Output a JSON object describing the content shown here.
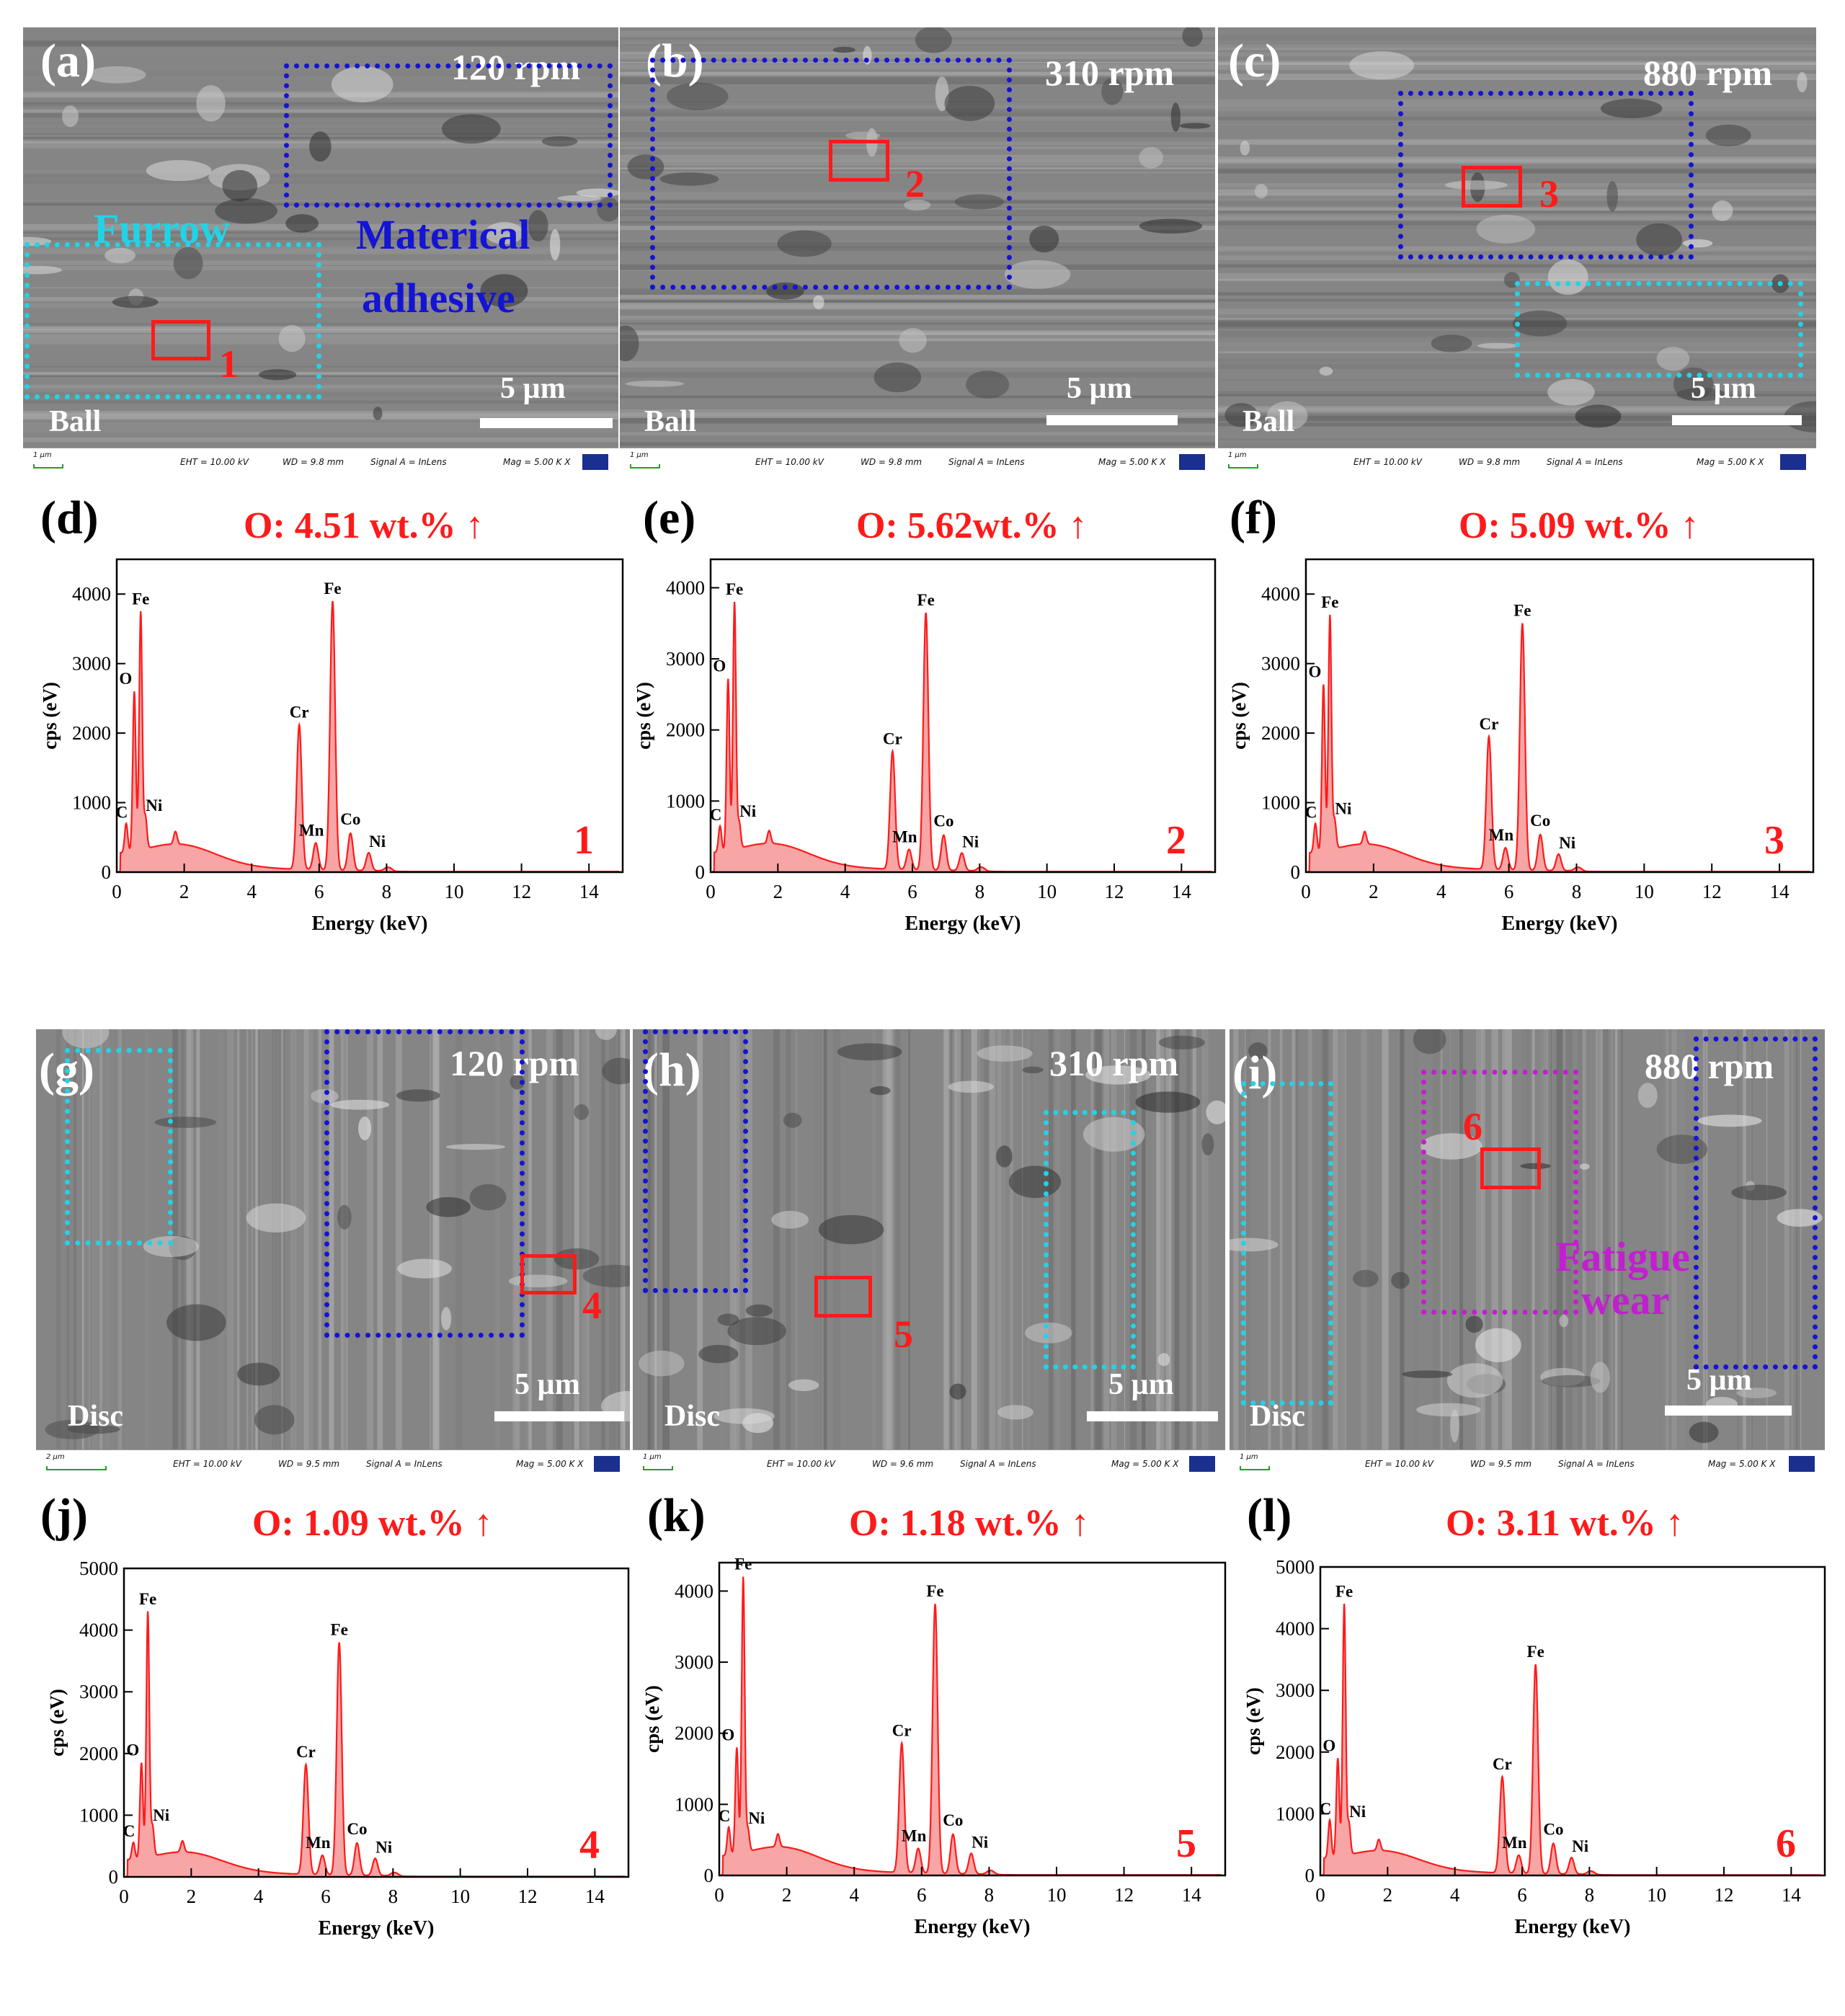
{
  "sem_panels": [
    {
      "id": "a",
      "label": "(a)",
      "rpm": "120 rpm",
      "sample": "Ball",
      "scale": "5 µm",
      "scale_small": "1 µm",
      "box_number": "1",
      "status": {
        "eht": "EHT = 10.00 kV",
        "wd": "WD = 9.8 mm",
        "signal": "Signal A = InLens",
        "mag": "Mag =  5.00 K X"
      },
      "annotations": {
        "furrow": "Furrow",
        "adhesive_line1": "Materical",
        "adhesive_line2": "adhesive"
      }
    },
    {
      "id": "b",
      "label": "(b)",
      "rpm": "310 rpm",
      "sample": "Ball",
      "scale": "5 µm",
      "scale_small": "1 µm",
      "box_number": "2",
      "status": {
        "eht": "EHT = 10.00 kV",
        "wd": "WD = 9.8 mm",
        "signal": "Signal A = InLens",
        "mag": "Mag =  5.00 K X"
      }
    },
    {
      "id": "c",
      "label": "(c)",
      "rpm": "880 rpm",
      "sample": "Ball",
      "scale": "5 µm",
      "scale_small": "1 µm",
      "box_number": "3",
      "status": {
        "eht": "EHT = 10.00 kV",
        "wd": "WD = 9.8 mm",
        "signal": "Signal A = InLens",
        "mag": "Mag =  5.00 K X"
      }
    },
    {
      "id": "g",
      "label": "(g)",
      "rpm": "120 rpm",
      "sample": "Disc",
      "scale": "5 µm",
      "scale_small": "2 µm",
      "box_number": "4",
      "status": {
        "eht": "EHT = 10.00 kV",
        "wd": "WD = 9.5 mm",
        "signal": "Signal A = InLens",
        "mag": "Mag =  5.00 K X"
      }
    },
    {
      "id": "h",
      "label": "(h)",
      "rpm": "310 rpm",
      "sample": "Disc",
      "scale": "5 µm",
      "scale_small": "1 µm",
      "box_number": "5",
      "status": {
        "eht": "EHT = 10.00 kV",
        "wd": "WD = 9.6 mm",
        "signal": "Signal A = InLens",
        "mag": "Mag =  5.00 K X"
      }
    },
    {
      "id": "i",
      "label": "(i)",
      "rpm": "880 rpm",
      "sample": "Disc",
      "scale": "5 µm",
      "scale_small": "1 µm",
      "box_number": "6",
      "status": {
        "eht": "EHT = 10.00 kV",
        "wd": "WD = 9.5 mm",
        "signal": "Signal A = InLens",
        "mag": "Mag =  5.00 K X"
      },
      "annotations": {
        "fatigue_line1": "Fatigue",
        "fatigue_line2": "wear"
      }
    }
  ],
  "colors": {
    "spectrum": "#ff1a1a",
    "spectrum_fill": "#f7a5a5",
    "furrow": "#22d3e6",
    "adhesive": "#1414d4",
    "fatigue": "#c21fd0",
    "red_box": "#ff1a1a"
  },
  "chart_data": [
    {
      "type": "area",
      "panel": "(d)",
      "title": "O: 4.51 wt.% ↑",
      "spot": "1",
      "xlabel": "Energy (keV)",
      "ylabel": "cps (eV)",
      "xlim": [
        0,
        15
      ],
      "ylim": [
        0,
        4500
      ],
      "xticks": [
        0,
        2,
        4,
        6,
        8,
        10,
        12,
        14
      ],
      "yticks": [
        0,
        1000,
        2000,
        3000,
        4000
      ],
      "peaks": [
        {
          "label": "C",
          "x": 0.28,
          "y": 700
        },
        {
          "label": "O",
          "x": 0.52,
          "y": 2600
        },
        {
          "label": "Fe",
          "x": 0.71,
          "y": 3750
        },
        {
          "label": "Ni",
          "x": 0.85,
          "y": 800
        },
        {
          "label": "Cr",
          "x": 5.41,
          "y": 2120
        },
        {
          "label": "Mn",
          "x": 5.9,
          "y": 420
        },
        {
          "label": "Fe",
          "x": 6.4,
          "y": 3900
        },
        {
          "label": "Co",
          "x": 6.93,
          "y": 560
        },
        {
          "label": "Ni",
          "x": 7.47,
          "y": 280
        }
      ]
    },
    {
      "type": "area",
      "panel": "(e)",
      "title": "O: 5.62wt.% ↑",
      "spot": "2",
      "xlabel": "Energy (keV)",
      "ylabel": "cps (eV)",
      "xlim": [
        0,
        15
      ],
      "ylim": [
        0,
        4400
      ],
      "xticks": [
        0,
        2,
        4,
        6,
        8,
        10,
        12,
        14
      ],
      "yticks": [
        0,
        1000,
        2000,
        3000,
        4000
      ],
      "peaks": [
        {
          "label": "C",
          "x": 0.28,
          "y": 650
        },
        {
          "label": "O",
          "x": 0.52,
          "y": 2720
        },
        {
          "label": "Fe",
          "x": 0.71,
          "y": 3800
        },
        {
          "label": "Ni",
          "x": 0.85,
          "y": 700
        },
        {
          "label": "Cr",
          "x": 5.41,
          "y": 1700
        },
        {
          "label": "Mn",
          "x": 5.9,
          "y": 320
        },
        {
          "label": "Fe",
          "x": 6.4,
          "y": 3650
        },
        {
          "label": "Co",
          "x": 6.93,
          "y": 520
        },
        {
          "label": "Ni",
          "x": 7.47,
          "y": 270
        }
      ]
    },
    {
      "type": "area",
      "panel": "(f)",
      "title": "O: 5.09 wt.% ↑",
      "spot": "3",
      "xlabel": "Energy (keV)",
      "ylabel": "cps (eV)",
      "xlim": [
        0,
        15
      ],
      "ylim": [
        0,
        4500
      ],
      "xticks": [
        0,
        2,
        4,
        6,
        8,
        10,
        12,
        14
      ],
      "yticks": [
        0,
        1000,
        2000,
        3000,
        4000
      ],
      "peaks": [
        {
          "label": "C",
          "x": 0.28,
          "y": 700
        },
        {
          "label": "O",
          "x": 0.52,
          "y": 2700
        },
        {
          "label": "Fe",
          "x": 0.71,
          "y": 3700
        },
        {
          "label": "Ni",
          "x": 0.85,
          "y": 750
        },
        {
          "label": "Cr",
          "x": 5.41,
          "y": 1950
        },
        {
          "label": "Mn",
          "x": 5.9,
          "y": 350
        },
        {
          "label": "Fe",
          "x": 6.4,
          "y": 3580
        },
        {
          "label": "Co",
          "x": 6.93,
          "y": 540
        },
        {
          "label": "Ni",
          "x": 7.47,
          "y": 260
        }
      ]
    },
    {
      "type": "area",
      "panel": "(j)",
      "title": "O: 1.09 wt.% ↑",
      "spot": "4",
      "xlabel": "Energy (keV)",
      "ylabel": "cps (eV)",
      "xlim": [
        0,
        15
      ],
      "ylim": [
        0,
        5000
      ],
      "xticks": [
        0,
        2,
        4,
        6,
        8,
        10,
        12,
        14
      ],
      "yticks": [
        0,
        1000,
        2000,
        3000,
        4000,
        5000
      ],
      "peaks": [
        {
          "label": "C",
          "x": 0.28,
          "y": 560
        },
        {
          "label": "O",
          "x": 0.52,
          "y": 1850
        },
        {
          "label": "Fe",
          "x": 0.71,
          "y": 4300
        },
        {
          "label": "Ni",
          "x": 0.85,
          "y": 820
        },
        {
          "label": "Cr",
          "x": 5.41,
          "y": 1820
        },
        {
          "label": "Mn",
          "x": 5.9,
          "y": 350
        },
        {
          "label": "Fe",
          "x": 6.4,
          "y": 3800
        },
        {
          "label": "Co",
          "x": 6.93,
          "y": 550
        },
        {
          "label": "Ni",
          "x": 7.47,
          "y": 300
        }
      ]
    },
    {
      "type": "area",
      "panel": "(k)",
      "title": "O: 1.18 wt.% ↑",
      "spot": "5",
      "xlabel": "Energy (keV)",
      "ylabel": "cps (eV)",
      "xlim": [
        0,
        15
      ],
      "ylim": [
        0,
        4400
      ],
      "xticks": [
        0,
        2,
        4,
        6,
        8,
        10,
        12,
        14
      ],
      "yticks": [
        0,
        1000,
        2000,
        3000,
        4000
      ],
      "peaks": [
        {
          "label": "C",
          "x": 0.28,
          "y": 680
        },
        {
          "label": "O",
          "x": 0.52,
          "y": 1800
        },
        {
          "label": "Fe",
          "x": 0.71,
          "y": 4200
        },
        {
          "label": "Ni",
          "x": 0.85,
          "y": 650
        },
        {
          "label": "Cr",
          "x": 5.41,
          "y": 1860
        },
        {
          "label": "Mn",
          "x": 5.9,
          "y": 380
        },
        {
          "label": "Fe",
          "x": 6.4,
          "y": 3820
        },
        {
          "label": "Co",
          "x": 6.93,
          "y": 580
        },
        {
          "label": "Ni",
          "x": 7.47,
          "y": 310
        }
      ]
    },
    {
      "type": "area",
      "panel": "(l)",
      "title": "O: 3.11 wt.% ↑",
      "spot": "6",
      "xlabel": "Energy (keV)",
      "ylabel": "cps (eV)",
      "xlim": [
        0,
        15
      ],
      "ylim": [
        0,
        5000
      ],
      "xticks": [
        0,
        2,
        4,
        6,
        8,
        10,
        12,
        14
      ],
      "yticks": [
        0,
        1000,
        2000,
        3000,
        4000,
        5000
      ],
      "peaks": [
        {
          "label": "C",
          "x": 0.28,
          "y": 900
        },
        {
          "label": "O",
          "x": 0.52,
          "y": 1900
        },
        {
          "label": "Fe",
          "x": 0.71,
          "y": 4400
        },
        {
          "label": "Ni",
          "x": 0.85,
          "y": 850
        },
        {
          "label": "Cr",
          "x": 5.41,
          "y": 1600
        },
        {
          "label": "Mn",
          "x": 5.9,
          "y": 330
        },
        {
          "label": "Fe",
          "x": 6.4,
          "y": 3420
        },
        {
          "label": "Co",
          "x": 6.93,
          "y": 520
        },
        {
          "label": "Ni",
          "x": 7.47,
          "y": 290
        }
      ]
    }
  ]
}
